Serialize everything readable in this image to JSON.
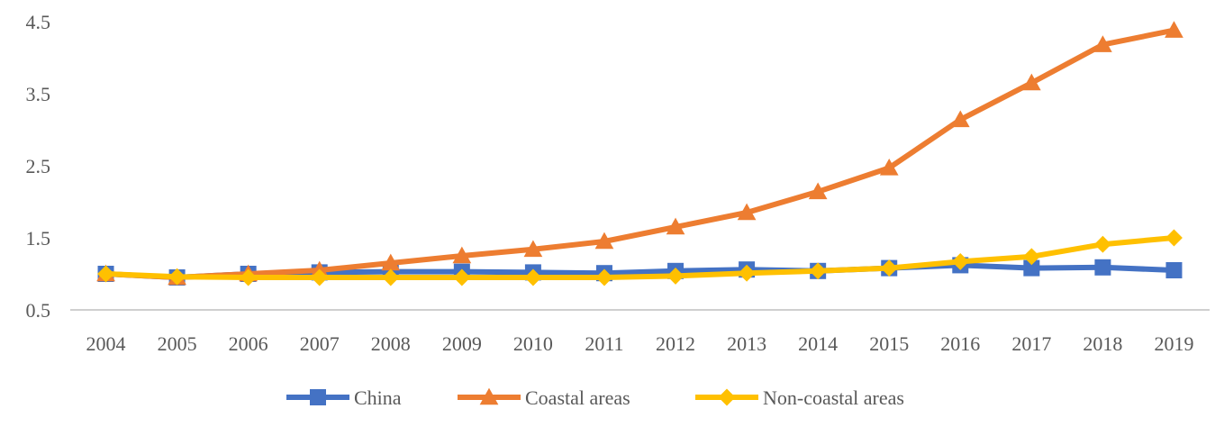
{
  "chart_data": {
    "type": "line",
    "title": "",
    "xlabel": "",
    "ylabel": "",
    "categories": [
      "2004",
      "2005",
      "2006",
      "2007",
      "2008",
      "2009",
      "2010",
      "2011",
      "2012",
      "2013",
      "2014",
      "2015",
      "2016",
      "2017",
      "2018",
      "2019"
    ],
    "ylim": [
      0.5,
      4.5
    ],
    "yticks": [
      0.5,
      1.5,
      2.5,
      3.5,
      4.5
    ],
    "ytick_labels": [
      "0.5",
      "1.5",
      "2.5",
      "3.5",
      "4.5"
    ],
    "grid": false,
    "legend_position": "bottom",
    "series": [
      {
        "name": "China",
        "color": "#4472C4",
        "marker": "square",
        "values": [
          1.0,
          0.95,
          1.0,
          1.02,
          1.03,
          1.03,
          1.02,
          1.01,
          1.04,
          1.06,
          1.04,
          1.08,
          1.12,
          1.08,
          1.09,
          1.05
        ]
      },
      {
        "name": "Coastal areas",
        "color": "#ED7D31",
        "marker": "triangle",
        "values": [
          1.0,
          0.95,
          1.0,
          1.05,
          1.15,
          1.25,
          1.34,
          1.45,
          1.65,
          1.85,
          2.14,
          2.47,
          3.14,
          3.65,
          4.18,
          4.38
        ]
      },
      {
        "name": "Non-coastal areas",
        "color": "#FFC000",
        "marker": "diamond",
        "values": [
          1.0,
          0.96,
          0.95,
          0.95,
          0.95,
          0.95,
          0.95,
          0.95,
          0.97,
          1.01,
          1.04,
          1.08,
          1.17,
          1.24,
          1.41,
          1.5
        ]
      }
    ]
  }
}
